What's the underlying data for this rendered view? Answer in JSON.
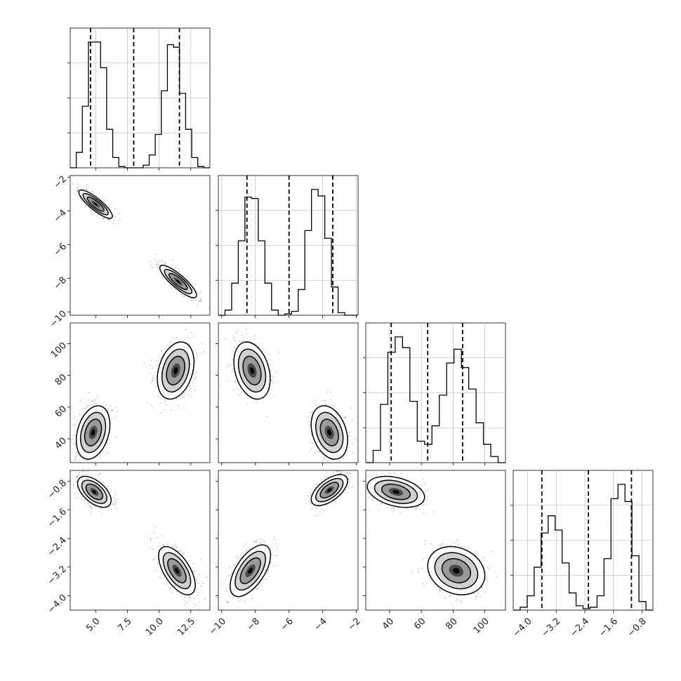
{
  "chart_data": {
    "type": "corner",
    "parameters": [
      {
        "range": [
          3.0,
          14.0
        ],
        "quantiles": [
          4.6,
          8.0,
          11.6
        ],
        "ticks": [
          5.0,
          7.5,
          10.0,
          12.5
        ],
        "tick_labels": [
          "5.0",
          "7.5",
          "10.0",
          "12.5"
        ],
        "modes": [
          {
            "mean": 5.0,
            "sd": 0.55,
            "weight": 0.5
          },
          {
            "mean": 11.2,
            "sd": 0.6,
            "weight": 0.5
          }
        ]
      },
      {
        "range": [
          -10.2,
          -1.9
        ],
        "quantiles": [
          -8.5,
          -6.0,
          -3.4
        ],
        "ticks": [
          -10,
          -8,
          -6,
          -4,
          -2
        ],
        "tick_labels": [
          "−10",
          "−8",
          "−6",
          "−4",
          "−2"
        ],
        "modes": [
          {
            "mean": -8.2,
            "sd": 0.5,
            "weight": 0.5
          },
          {
            "mean": -3.6,
            "sd": 0.5,
            "weight": 0.5
          }
        ]
      },
      {
        "range": [
          25.0,
          113.0
        ],
        "quantiles": [
          41.0,
          64.0,
          86.0
        ],
        "ticks": [
          40,
          60,
          80,
          100
        ],
        "tick_labels": [
          "40",
          "60",
          "80",
          "100"
        ],
        "modes": [
          {
            "mean": 44.0,
            "sd": 7.0,
            "weight": 0.5
          },
          {
            "mean": 83.0,
            "sd": 7.5,
            "weight": 0.5
          }
        ]
      },
      {
        "range": [
          -4.4,
          -0.5
        ],
        "quantiles": [
          -3.6,
          -2.3,
          -1.1
        ],
        "ticks": [
          -4.0,
          -3.2,
          -2.4,
          -1.6,
          -0.8
        ],
        "tick_labels": [
          "−4.0",
          "−3.2",
          "−2.4",
          "−1.6",
          "−0.8"
        ],
        "modes": [
          {
            "mean": -3.3,
            "sd": 0.3,
            "weight": 0.5
          },
          {
            "mean": -1.0,
            "sd": 0.18,
            "weight": 0.5
          }
        ]
      }
    ],
    "histograms": [
      {
        "counts": [
          0,
          12,
          48,
          98,
          98,
          78,
          30,
          8,
          1,
          0,
          0,
          0,
          2,
          10,
          26,
          60,
          96,
          94,
          58,
          30,
          8,
          1,
          0
        ]
      },
      {
        "counts": [
          0,
          4,
          25,
          58,
          92,
          91,
          58,
          25,
          4,
          0,
          1,
          3,
          20,
          66,
          98,
          93,
          60,
          22,
          2,
          0,
          0
        ]
      },
      {
        "counts": [
          0,
          8,
          38,
          72,
          82,
          75,
          40,
          14,
          12,
          24,
          44,
          65,
          74,
          62,
          48,
          26,
          12,
          4,
          0
        ]
      },
      {
        "counts": [
          0,
          2,
          10,
          30,
          54,
          66,
          56,
          33,
          12,
          3,
          1,
          2,
          10,
          36,
          78,
          88,
          76,
          38,
          6,
          0
        ]
      }
    ],
    "pair_modes": [
      {
        "x": 0,
        "y": 1,
        "centers": [
          [
            5.0,
            -3.6
          ],
          [
            11.5,
            -8.2
          ]
        ],
        "sx": [
          0.55,
          0.6
        ],
        "sy": [
          0.35,
          0.4
        ],
        "rho": [
          -0.85,
          -0.85
        ]
      },
      {
        "x": 0,
        "y": 2,
        "centers": [
          [
            4.8,
            44.0
          ],
          [
            11.3,
            83.0
          ]
        ],
        "sx": [
          0.55,
          0.6
        ],
        "sy": [
          7.0,
          7.5
        ],
        "rho": [
          0.3,
          0.3
        ]
      },
      {
        "x": 1,
        "y": 2,
        "centers": [
          [
            -8.2,
            83.0
          ],
          [
            -3.6,
            44.0
          ]
        ],
        "sx": [
          0.45,
          0.45
        ],
        "sy": [
          7.5,
          7.0
        ],
        "rho": [
          -0.3,
          -0.3
        ]
      },
      {
        "x": 0,
        "y": 3,
        "centers": [
          [
            4.9,
            -1.1
          ],
          [
            11.4,
            -3.3
          ]
        ],
        "sx": [
          0.55,
          0.6
        ],
        "sy": [
          0.18,
          0.28
        ],
        "rho": [
          -0.55,
          -0.6
        ]
      },
      {
        "x": 1,
        "y": 3,
        "centers": [
          [
            -8.3,
            -3.3
          ],
          [
            -3.6,
            -1.05
          ]
        ],
        "sx": [
          0.5,
          0.45
        ],
        "sy": [
          0.3,
          0.18
        ],
        "rho": [
          0.6,
          0.6
        ]
      },
      {
        "x": 2,
        "y": 3,
        "centers": [
          [
            44.0,
            -1.1
          ],
          [
            82.0,
            -3.3
          ]
        ],
        "sx": [
          7.5,
          7.5
        ],
        "sy": [
          0.18,
          0.28
        ],
        "rho": [
          -0.35,
          -0.2
        ]
      }
    ],
    "style": {
      "line_color": "#000000",
      "grid_color": "#b0b0b0",
      "point_color": "#555555"
    }
  }
}
